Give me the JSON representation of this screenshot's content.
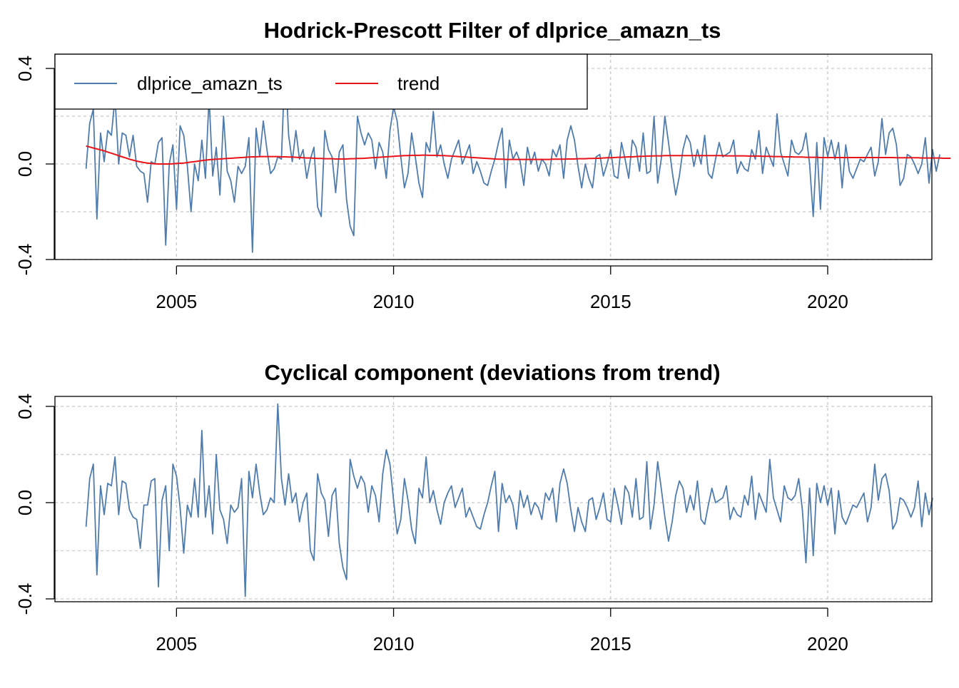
{
  "chart_data": [
    {
      "type": "line",
      "title": "Hodrick-Prescott Filter of dlprice_amazn_ts",
      "xlabel": "",
      "ylabel": "",
      "xlim": [
        2002.2,
        2022.4
      ],
      "ylim": [
        -0.4,
        0.4
      ],
      "xticks": [
        2005,
        2010,
        2015,
        2020
      ],
      "yticks": [
        -0.4,
        0.0,
        0.4
      ],
      "ytick_labels": [
        "-0.4",
        "0.0",
        "0.4"
      ],
      "grid": true,
      "legend_position": "top-left",
      "x_start": 2002.917,
      "x_step": 0.08333,
      "series": [
        {
          "name": "dlprice_amazn_ts",
          "color": "#4F7CAC",
          "values": [
            -0.02,
            0.17,
            0.23,
            -0.23,
            0.13,
            0.01,
            0.14,
            0.12,
            0.28,
            0.0,
            0.13,
            0.12,
            0.03,
            0.12,
            -0.01,
            -0.03,
            -0.04,
            -0.16,
            0.01,
            0.0,
            0.09,
            0.11,
            -0.34,
            0.0,
            0.08,
            -0.19,
            0.16,
            0.12,
            -0.01,
            -0.2,
            0.0,
            -0.07,
            0.1,
            -0.06,
            0.28,
            -0.05,
            0.07,
            -0.13,
            0.2,
            -0.03,
            -0.07,
            -0.16,
            -0.01,
            -0.04,
            -0.01,
            0.11,
            -0.37,
            0.15,
            0.03,
            0.18,
            0.06,
            -0.04,
            -0.02,
            0.03,
            0.02,
            0.43,
            0.12,
            0.01,
            0.14,
            0.02,
            0.06,
            -0.06,
            0.02,
            0.07,
            -0.18,
            -0.22,
            0.14,
            0.06,
            0.03,
            -0.12,
            0.05,
            0.08,
            -0.15,
            -0.26,
            -0.3,
            0.2,
            0.13,
            0.08,
            0.13,
            0.1,
            -0.02,
            0.09,
            0.05,
            -0.06,
            0.14,
            0.24,
            0.18,
            0.03,
            -0.1,
            -0.04,
            0.13,
            0.03,
            -0.08,
            -0.14,
            0.09,
            0.05,
            0.22,
            0.03,
            0.08,
            0.0,
            -0.06,
            0.02,
            0.06,
            0.1,
            0.0,
            0.04,
            0.08,
            -0.04,
            0.01,
            -0.03,
            -0.08,
            -0.09,
            -0.03,
            0.02,
            0.09,
            0.15,
            -0.1,
            0.1,
            0.02,
            0.05,
            0.01,
            -0.09,
            0.07,
            0.0,
            0.05,
            -0.03,
            0.02,
            0.0,
            -0.05,
            0.06,
            0.03,
            0.08,
            -0.06,
            0.1,
            0.16,
            0.1,
            -0.01,
            -0.1,
            0.0,
            -0.06,
            -0.1,
            0.03,
            0.04,
            -0.05,
            0.0,
            0.06,
            -0.05,
            -0.06,
            0.09,
            0.02,
            -0.06,
            0.1,
            0.07,
            -0.03,
            0.13,
            -0.04,
            -0.03,
            0.2,
            -0.08,
            0.02,
            0.2,
            0.09,
            -0.03,
            -0.13,
            -0.05,
            0.06,
            0.12,
            0.09,
            -0.01,
            0.06,
            0.0,
            0.12,
            -0.04,
            -0.06,
            0.02,
            0.09,
            0.03,
            0.04,
            0.05,
            0.1,
            -0.04,
            0.01,
            -0.02,
            -0.03,
            0.06,
            0.02,
            0.14,
            -0.04,
            0.07,
            0.03,
            -0.01,
            0.21,
            0.05,
            0.0,
            -0.05,
            0.1,
            0.05,
            0.04,
            0.06,
            0.13,
            0.0,
            -0.22,
            0.09,
            -0.19,
            0.11,
            0.03,
            0.1,
            0.02,
            0.09,
            -0.1,
            0.08,
            -0.03,
            -0.06,
            -0.02,
            0.02,
            0.01,
            0.04,
            0.07,
            -0.05,
            0.01,
            0.19,
            0.04,
            0.13,
            0.15,
            0.08,
            -0.09,
            -0.06,
            0.04,
            0.03,
            0.0,
            -0.04,
            0.0,
            0.11,
            -0.08,
            0.06,
            -0.03,
            0.04
          ]
        },
        {
          "name": "trend",
          "color": "#E8141A",
          "values": [
            0.075,
            0.071,
            0.067,
            0.063,
            0.059,
            0.055,
            0.05,
            0.045,
            0.04,
            0.035,
            0.03,
            0.025,
            0.02,
            0.016,
            0.012,
            0.009,
            0.006,
            0.004,
            0.002,
            0.001,
            0.0,
            0.0,
            0.0,
            0.0,
            0.001,
            0.002,
            0.003,
            0.004,
            0.006,
            0.008,
            0.01,
            0.012,
            0.014,
            0.016,
            0.018,
            0.019,
            0.02,
            0.021,
            0.022,
            0.023,
            0.024,
            0.025,
            0.026,
            0.027,
            0.028,
            0.029,
            0.03,
            0.03,
            0.031,
            0.031,
            0.031,
            0.031,
            0.031,
            0.031,
            0.03,
            0.03,
            0.029,
            0.029,
            0.028,
            0.027,
            0.026,
            0.025,
            0.025,
            0.024,
            0.023,
            0.023,
            0.022,
            0.022,
            0.022,
            0.021,
            0.021,
            0.021,
            0.021,
            0.022,
            0.022,
            0.023,
            0.023,
            0.024,
            0.025,
            0.026,
            0.027,
            0.028,
            0.029,
            0.03,
            0.031,
            0.032,
            0.033,
            0.034,
            0.035,
            0.035,
            0.036,
            0.036,
            0.036,
            0.037,
            0.037,
            0.036,
            0.036,
            0.036,
            0.035,
            0.035,
            0.034,
            0.033,
            0.032,
            0.031,
            0.03,
            0.029,
            0.028,
            0.027,
            0.026,
            0.025,
            0.024,
            0.023,
            0.022,
            0.021,
            0.02,
            0.02,
            0.019,
            0.019,
            0.019,
            0.019,
            0.019,
            0.019,
            0.019,
            0.019,
            0.019,
            0.019,
            0.019,
            0.019,
            0.019,
            0.02,
            0.02,
            0.02,
            0.02,
            0.021,
            0.021,
            0.021,
            0.022,
            0.022,
            0.022,
            0.023,
            0.023,
            0.024,
            0.024,
            0.025,
            0.026,
            0.026,
            0.027,
            0.028,
            0.028,
            0.029,
            0.03,
            0.03,
            0.031,
            0.032,
            0.032,
            0.033,
            0.033,
            0.034,
            0.034,
            0.034,
            0.035,
            0.035,
            0.035,
            0.035,
            0.035,
            0.035,
            0.035,
            0.035,
            0.035,
            0.035,
            0.035,
            0.035,
            0.035,
            0.035,
            0.035,
            0.035,
            0.035,
            0.034,
            0.034,
            0.034,
            0.034,
            0.034,
            0.034,
            0.033,
            0.033,
            0.033,
            0.033,
            0.032,
            0.032,
            0.032,
            0.031,
            0.031,
            0.031,
            0.03,
            0.03,
            0.03,
            0.029,
            0.029,
            0.029,
            0.028,
            0.028,
            0.028,
            0.028,
            0.027,
            0.027,
            0.027,
            0.027,
            0.027,
            0.027,
            0.027,
            0.027,
            0.027,
            0.027,
            0.027,
            0.027,
            0.027,
            0.027,
            0.027,
            0.027,
            0.027,
            0.027,
            0.027,
            0.027,
            0.027,
            0.026,
            0.026,
            0.026,
            0.026,
            0.026,
            0.026,
            0.026,
            0.025,
            0.025,
            0.025,
            0.025,
            0.025,
            0.025,
            0.024,
            0.024,
            0.024
          ]
        }
      ]
    },
    {
      "type": "line",
      "title": "Cyclical component (deviations from trend)",
      "xlabel": "",
      "ylabel": "",
      "xlim": [
        2002.2,
        2022.4
      ],
      "ylim": [
        -0.4,
        0.4
      ],
      "xticks": [
        2005,
        2010,
        2015,
        2020
      ],
      "yticks": [
        -0.4,
        0.0,
        0.4
      ],
      "ytick_labels": [
        "-0.4",
        "0.0",
        "0.4"
      ],
      "grid": true,
      "x_start": 2002.917,
      "x_step": 0.08333,
      "series": [
        {
          "name": "",
          "color": "#4F7CAC",
          "values": [
            -0.1,
            0.1,
            0.16,
            -0.3,
            0.07,
            -0.05,
            0.08,
            0.07,
            0.19,
            -0.05,
            0.09,
            0.08,
            -0.03,
            -0.06,
            -0.07,
            -0.19,
            -0.01,
            -0.01,
            0.09,
            0.1,
            -0.35,
            0.01,
            0.07,
            -0.2,
            0.16,
            0.11,
            -0.02,
            -0.21,
            -0.01,
            -0.06,
            0.1,
            -0.06,
            0.3,
            -0.06,
            0.07,
            -0.13,
            0.2,
            -0.03,
            -0.07,
            -0.17,
            -0.01,
            -0.04,
            -0.02,
            0.1,
            -0.39,
            0.13,
            0.02,
            0.16,
            0.04,
            -0.05,
            -0.03,
            0.02,
            0.0,
            0.41,
            0.1,
            -0.01,
            0.12,
            0.0,
            0.04,
            -0.08,
            0.0,
            0.04,
            -0.2,
            -0.24,
            0.12,
            0.04,
            0.01,
            -0.14,
            0.03,
            0.06,
            -0.17,
            -0.27,
            -0.32,
            0.18,
            0.11,
            0.06,
            0.11,
            0.08,
            -0.04,
            0.07,
            0.03,
            -0.08,
            0.12,
            0.22,
            0.16,
            0.01,
            -0.13,
            -0.07,
            0.1,
            0.01,
            -0.11,
            -0.17,
            0.06,
            0.02,
            0.19,
            0.0,
            0.05,
            -0.03,
            -0.09,
            0.0,
            0.04,
            0.07,
            -0.02,
            0.02,
            0.06,
            -0.06,
            -0.02,
            -0.06,
            -0.1,
            -0.11,
            -0.05,
            0.0,
            0.07,
            0.13,
            -0.12,
            0.08,
            0.0,
            0.03,
            -0.01,
            -0.11,
            0.05,
            -0.02,
            0.03,
            -0.05,
            0.0,
            -0.02,
            -0.07,
            0.04,
            0.01,
            0.06,
            -0.08,
            0.08,
            0.14,
            0.08,
            -0.03,
            -0.12,
            -0.02,
            -0.08,
            -0.12,
            0.01,
            0.02,
            -0.07,
            -0.02,
            0.04,
            -0.07,
            -0.08,
            0.06,
            -0.01,
            -0.09,
            0.07,
            0.04,
            -0.06,
            0.1,
            -0.07,
            -0.06,
            0.17,
            -0.11,
            -0.01,
            0.17,
            0.06,
            -0.06,
            -0.16,
            -0.08,
            0.03,
            0.09,
            0.06,
            -0.04,
            0.03,
            -0.03,
            0.09,
            -0.07,
            -0.09,
            -0.01,
            0.06,
            0.0,
            0.01,
            0.02,
            0.07,
            -0.07,
            -0.02,
            -0.05,
            -0.06,
            0.03,
            -0.01,
            0.11,
            -0.07,
            0.04,
            0.0,
            -0.04,
            0.18,
            0.02,
            -0.03,
            -0.08,
            0.07,
            0.02,
            0.01,
            0.03,
            0.1,
            -0.03,
            -0.25,
            0.06,
            -0.22,
            0.08,
            0.0,
            0.07,
            -0.01,
            0.06,
            -0.13,
            0.05,
            -0.06,
            -0.09,
            -0.05,
            -0.01,
            -0.02,
            0.01,
            0.04,
            -0.08,
            -0.02,
            0.16,
            0.01,
            0.1,
            0.12,
            0.05,
            -0.11,
            -0.08,
            0.02,
            0.01,
            -0.02,
            -0.06,
            -0.02,
            0.09,
            -0.1,
            0.04,
            -0.05,
            0.02
          ]
        }
      ]
    }
  ]
}
